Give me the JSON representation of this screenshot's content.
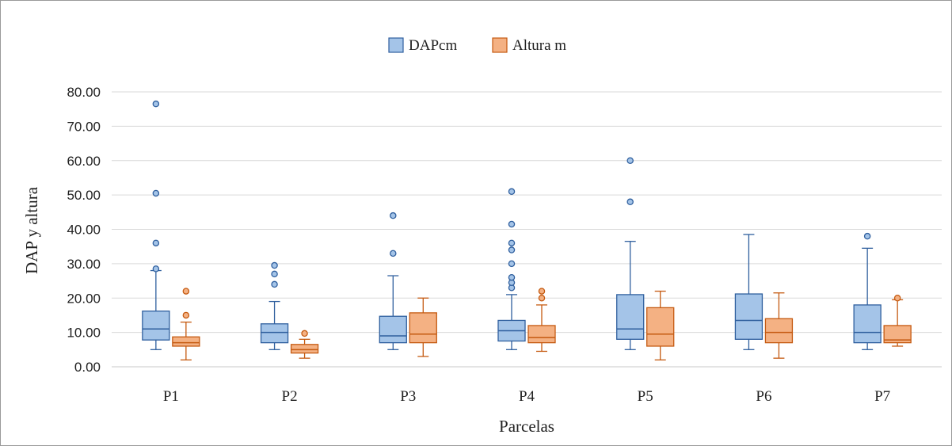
{
  "chart_data": {
    "type": "boxplot",
    "title": "",
    "xlabel": "Parcelas",
    "ylabel": "DAP y altura",
    "ylim": [
      0,
      80
    ],
    "yticks": [
      "0.00",
      "10.00",
      "20.00",
      "30.00",
      "40.00",
      "50.00",
      "60.00",
      "70.00",
      "80.00"
    ],
    "grid": true,
    "legend_position": "top-center",
    "categories": [
      "P1",
      "P2",
      "P3",
      "P4",
      "P5",
      "P6",
      "P7"
    ],
    "series": [
      {
        "name": "DAPcm",
        "fill": "#a4c4e8",
        "stroke": "#2f5f9e",
        "boxes": [
          {
            "min": 5.0,
            "q1": 7.8,
            "median": 11.0,
            "q3": 16.2,
            "max": 28.0,
            "outliers": [
              28.5,
              36.0,
              50.5,
              76.5
            ]
          },
          {
            "min": 5.0,
            "q1": 7.0,
            "median": 10.0,
            "q3": 12.5,
            "max": 19.0,
            "outliers": [
              24.0,
              27.0,
              29.5
            ]
          },
          {
            "min": 5.0,
            "q1": 7.0,
            "median": 9.0,
            "q3": 14.7,
            "max": 26.5,
            "outliers": [
              33.0,
              44.0
            ]
          },
          {
            "min": 5.0,
            "q1": 7.5,
            "median": 10.5,
            "q3": 13.5,
            "max": 21.0,
            "outliers": [
              23.0,
              24.5,
              26.0,
              30.0,
              34.0,
              36.0,
              41.5,
              51.0
            ]
          },
          {
            "min": 5.0,
            "q1": 8.0,
            "median": 11.0,
            "q3": 21.0,
            "max": 36.5,
            "outliers": [
              48.0,
              60.0
            ]
          },
          {
            "min": 5.0,
            "q1": 8.0,
            "median": 13.5,
            "q3": 21.2,
            "max": 38.5,
            "outliers": []
          },
          {
            "min": 5.0,
            "q1": 7.0,
            "median": 10.0,
            "q3": 18.0,
            "max": 34.5,
            "outliers": [
              38.0
            ]
          }
        ]
      },
      {
        "name": "Altura m",
        "fill": "#f4b183",
        "stroke": "#c55a11",
        "boxes": [
          {
            "min": 2.0,
            "q1": 6.0,
            "median": 7.0,
            "q3": 8.7,
            "max": 13.0,
            "outliers": [
              15.0,
              22.0
            ]
          },
          {
            "min": 2.5,
            "q1": 4.0,
            "median": 5.0,
            "q3": 6.5,
            "max": 8.0,
            "outliers": [
              9.7
            ]
          },
          {
            "min": 3.0,
            "q1": 7.0,
            "median": 9.5,
            "q3": 15.7,
            "max": 20.0,
            "outliers": []
          },
          {
            "min": 4.5,
            "q1": 7.0,
            "median": 8.5,
            "q3": 12.0,
            "max": 18.0,
            "outliers": [
              20.0,
              22.0
            ]
          },
          {
            "min": 2.0,
            "q1": 6.0,
            "median": 9.5,
            "q3": 17.2,
            "max": 22.0,
            "outliers": []
          },
          {
            "min": 2.5,
            "q1": 7.0,
            "median": 10.0,
            "q3": 14.0,
            "max": 21.5,
            "outliers": []
          },
          {
            "min": 6.0,
            "q1": 7.0,
            "median": 7.8,
            "q3": 12.0,
            "max": 19.5,
            "outliers": [
              20.0
            ]
          }
        ]
      }
    ]
  }
}
